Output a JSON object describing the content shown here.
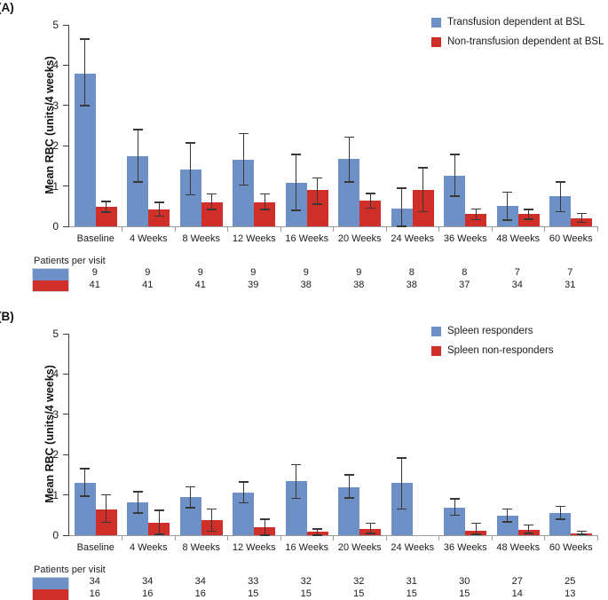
{
  "chart_data": [
    {
      "type": "bar",
      "panel_label": "(A)",
      "ylabel": "Mean RBC (units/4 weeks)",
      "ylim": [
        0,
        5
      ],
      "yticks": [
        0,
        1,
        2,
        3,
        4,
        5
      ],
      "grid": false,
      "legend_position": "top-right",
      "categories": [
        "Baseline",
        "4 Weeks",
        "8 Weeks",
        "12 Weeks",
        "16 Weeks",
        "20 Weeks",
        "24 Weeks",
        "36 Weeks",
        "48 Weeks",
        "60 Weeks"
      ],
      "series": [
        {
          "name": "Transfusion dependent at BSL",
          "color": "#6d90c7",
          "values": [
            3.8,
            1.75,
            1.42,
            1.65,
            1.08,
            1.67,
            0.45,
            1.25,
            0.5,
            0.75
          ],
          "err_low": [
            3.0,
            1.1,
            0.78,
            1.02,
            0.4,
            1.1,
            0.0,
            0.75,
            0.15,
            0.37
          ],
          "err_high": [
            4.65,
            2.4,
            2.07,
            2.3,
            1.78,
            2.22,
            0.95,
            1.78,
            0.85,
            1.1
          ]
        },
        {
          "name": "Non-transfusion dependent at BSL",
          "color": "#cf2f28",
          "values": [
            0.48,
            0.42,
            0.6,
            0.6,
            0.9,
            0.63,
            0.9,
            0.3,
            0.3,
            0.2
          ],
          "err_low": [
            0.35,
            0.25,
            0.42,
            0.42,
            0.55,
            0.45,
            0.37,
            0.17,
            0.18,
            0.1
          ],
          "err_high": [
            0.62,
            0.6,
            0.8,
            0.8,
            1.2,
            0.82,
            1.45,
            0.43,
            0.42,
            0.32
          ]
        }
      ],
      "patients_per_visit": {
        "label": "Patients per visit",
        "rows": [
          [
            9,
            9,
            9,
            9,
            9,
            9,
            8,
            8,
            7,
            7
          ],
          [
            41,
            41,
            41,
            39,
            38,
            38,
            38,
            37,
            34,
            31
          ]
        ]
      }
    },
    {
      "type": "bar",
      "panel_label": "(B)",
      "ylabel": "Mean RBC (units/4 weeks)",
      "ylim": [
        0,
        5
      ],
      "yticks": [
        0,
        1,
        2,
        3,
        4,
        5
      ],
      "grid": false,
      "legend_position": "top-right",
      "categories": [
        "Baseline",
        "4 Weeks",
        "8 Weeks",
        "12 Weeks",
        "16 Weeks",
        "20 Weeks",
        "24 Weeks",
        "36 Weeks",
        "48 Weeks",
        "60 Weeks"
      ],
      "series": [
        {
          "name": "Spleen responders",
          "color": "#6d90c7",
          "values": [
            1.3,
            0.82,
            0.95,
            1.05,
            1.35,
            1.2,
            1.3,
            0.68,
            0.48,
            0.55
          ],
          "err_low": [
            0.97,
            0.55,
            0.68,
            0.8,
            0.92,
            0.93,
            0.65,
            0.5,
            0.33,
            0.4
          ],
          "err_high": [
            1.65,
            1.08,
            1.2,
            1.32,
            1.75,
            1.5,
            1.92,
            0.9,
            0.65,
            0.72
          ]
        },
        {
          "name": "Spleen non-responders",
          "color": "#cf2f28",
          "values": [
            0.65,
            0.32,
            0.38,
            0.2,
            0.08,
            0.15,
            0,
            0.12,
            0.13,
            0.05
          ],
          "err_low": [
            0.32,
            0.02,
            0.1,
            0.0,
            0.0,
            0.05,
            null,
            0.02,
            0.05,
            0.02
          ],
          "err_high": [
            1.0,
            0.62,
            0.65,
            0.4,
            0.15,
            0.3,
            null,
            0.3,
            0.25,
            0.1
          ]
        }
      ],
      "patients_per_visit": {
        "label": "Patients per visit",
        "rows": [
          [
            34,
            34,
            34,
            33,
            32,
            32,
            31,
            30,
            27,
            25
          ],
          [
            16,
            16,
            16,
            15,
            15,
            15,
            15,
            15,
            14,
            13
          ]
        ]
      }
    }
  ]
}
